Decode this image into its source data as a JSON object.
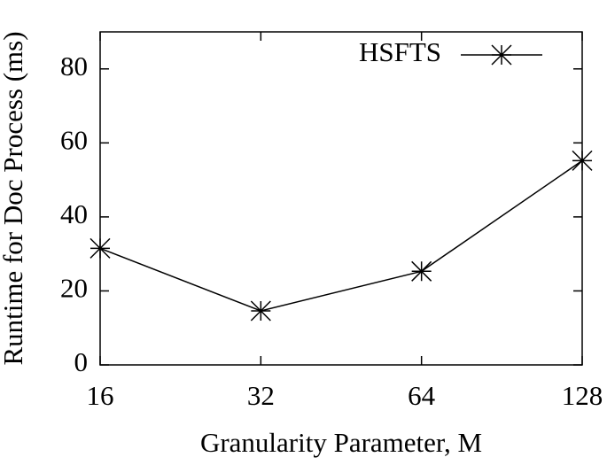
{
  "chart_data": {
    "type": "line",
    "x_label": "Granularity Parameter, M",
    "y_label": "Runtime for Doc Process (ms)",
    "x": [
      16,
      32,
      64,
      128
    ],
    "xscale": "log",
    "xlim": [
      16,
      128
    ],
    "xticks": [
      16,
      32,
      64,
      128
    ],
    "ylim": [
      0,
      90
    ],
    "yticks": [
      0,
      20,
      40,
      60,
      80
    ],
    "legend": "top-right",
    "series": [
      {
        "name": "HSFTS",
        "color": "#000000",
        "marker": "star",
        "values": [
          31.5,
          14.6,
          25.3,
          55.2
        ]
      }
    ]
  }
}
